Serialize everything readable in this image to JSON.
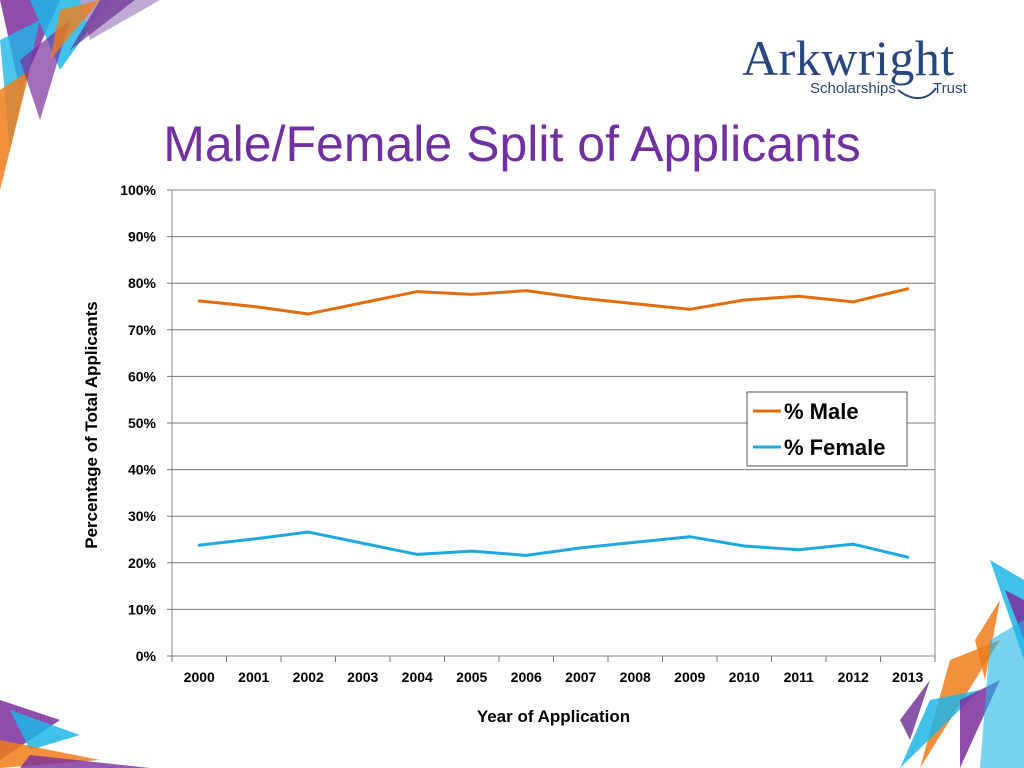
{
  "slide": {
    "title": "Male/Female Split of Applicants"
  },
  "logo": {
    "name": "Arkwright",
    "subtitle_left": "Scholarships",
    "subtitle_right": "Trust",
    "color": "#27457f"
  },
  "colors": {
    "title": "#7030a0",
    "male": "#e46c0a",
    "female": "#1fa8e0",
    "decor_purple": "#7b2f9e",
    "decor_cyan": "#1fb6e6",
    "decor_orange": "#f07d1a"
  },
  "chart_data": {
    "type": "line",
    "xlabel": "Year of Application",
    "ylabel": "Percentage of Total Applicants",
    "categories": [
      "2000",
      "2001",
      "2002",
      "2003",
      "2004",
      "2005",
      "2006",
      "2007",
      "2008",
      "2009",
      "2010",
      "2011",
      "2012",
      "2013"
    ],
    "ylim": [
      0,
      100
    ],
    "yticks": [
      "0%",
      "10%",
      "20%",
      "30%",
      "40%",
      "50%",
      "60%",
      "70%",
      "80%",
      "90%",
      "100%"
    ],
    "grid": true,
    "legend_position": "right",
    "series": [
      {
        "name": "% Male",
        "values": [
          76.2,
          75.0,
          73.4,
          75.8,
          78.2,
          77.6,
          78.4,
          76.8,
          75.6,
          74.4,
          76.4,
          77.2,
          76.0,
          78.8
        ]
      },
      {
        "name": "% Female",
        "values": [
          23.8,
          25.1,
          26.6,
          24.2,
          21.8,
          22.5,
          21.6,
          23.2,
          24.4,
          25.6,
          23.6,
          22.8,
          24.0,
          21.2
        ]
      }
    ]
  }
}
